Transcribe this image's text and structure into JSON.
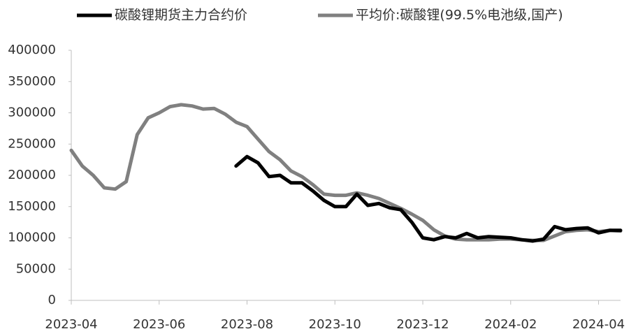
{
  "chart_data": {
    "type": "line",
    "categories": [
      "2023-04",
      null,
      null,
      null,
      null,
      null,
      null,
      null,
      "2023-06",
      null,
      null,
      null,
      null,
      null,
      null,
      null,
      "2023-08",
      null,
      null,
      null,
      null,
      null,
      null,
      null,
      "2023-10",
      null,
      null,
      null,
      null,
      null,
      null,
      null,
      "2023-12",
      null,
      null,
      null,
      null,
      null,
      null,
      null,
      "2024-02",
      null,
      null,
      null,
      null,
      null,
      null,
      null,
      "2024-04",
      null,
      null
    ],
    "series": [
      {
        "name": "碳酸锂期货主力合约价",
        "color": "#000000",
        "values": [
          null,
          null,
          null,
          null,
          null,
          null,
          null,
          null,
          null,
          null,
          null,
          null,
          null,
          null,
          null,
          215000,
          230000,
          220000,
          198000,
          200000,
          188000,
          188000,
          175000,
          160000,
          150000,
          150000,
          170000,
          152000,
          155000,
          148000,
          145000,
          125000,
          100000,
          97000,
          102000,
          100000,
          107000,
          100000,
          102000,
          101000,
          100000,
          97000,
          95000,
          98000,
          118000,
          113000,
          115000,
          116000,
          108000,
          112000,
          112000
        ]
      },
      {
        "name": "平均价:碳酸锂(99.5%电池级,国产)",
        "color": "#808080",
        "values": [
          240000,
          215000,
          200000,
          180000,
          178000,
          190000,
          265000,
          292000,
          300000,
          310000,
          313000,
          311000,
          306000,
          307000,
          298000,
          285000,
          278000,
          258000,
          238000,
          225000,
          207000,
          198000,
          185000,
          170000,
          168000,
          168000,
          172000,
          168000,
          163000,
          155000,
          147000,
          138000,
          128000,
          113000,
          103000,
          98000,
          97000,
          97000,
          97000,
          98000,
          98000,
          97000,
          96000,
          96000,
          103000,
          110000,
          112000,
          113000,
          110000,
          112000,
          111000
        ]
      }
    ],
    "ylim": [
      0,
      400000
    ],
    "yticks": [
      0,
      50000,
      100000,
      150000,
      200000,
      250000,
      300000,
      350000,
      400000
    ],
    "legend": "top"
  }
}
